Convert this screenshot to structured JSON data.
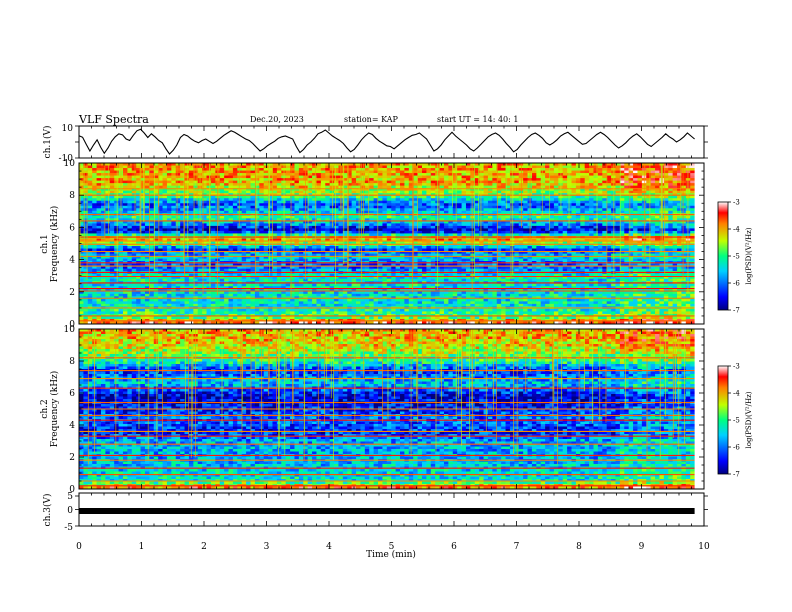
{
  "header": {
    "title": "VLF Spectra",
    "date": "Dec.20, 2023",
    "station": "station= KAP",
    "start": "start  UT  =   14: 40: 1"
  },
  "chart_data": [
    {
      "type": "line",
      "name": "waveform-ch1",
      "ylabel": "ch.1(V)",
      "ylim": [
        -10,
        10
      ],
      "y_tick_labels": [
        "10",
        "-10"
      ],
      "xlim": [
        0,
        10
      ],
      "values": [
        4.2,
        3.1,
        -1.5,
        -6.0,
        -2.0,
        1.5,
        -3.5,
        -7.5,
        -4.0,
        0.5,
        3.5,
        5.5,
        4.8,
        2.0,
        1.0,
        4.5,
        7.5,
        8.5,
        6.0,
        3.0,
        5.5,
        3.5,
        1.0,
        -0.5,
        -4.5,
        -8.0,
        -5.5,
        -2.0,
        3.0,
        5.0,
        4.0,
        2.0,
        0.5,
        -0.5,
        1.0,
        2.0,
        0.5,
        -1.0,
        0.5,
        2.5,
        4.5,
        6.0,
        7.5,
        6.5,
        5.0,
        3.5,
        2.0,
        1.0,
        -1.0,
        -3.5,
        -6.0,
        -4.5,
        -2.5,
        -1.0,
        0.5,
        2.5,
        3.5,
        4.0,
        3.0,
        2.0,
        -3.0,
        -7.0,
        -5.0,
        -2.0,
        0.0,
        2.5,
        5.5,
        6.5,
        8.0,
        6.0,
        4.0,
        2.5,
        1.0,
        -1.0,
        -4.0,
        -6.5,
        -5.0,
        -2.0,
        1.5,
        4.0,
        6.0,
        5.0,
        2.5,
        0.5,
        -1.0,
        -2.5,
        -3.0,
        -4.5,
        -2.5,
        -0.5,
        1.5,
        3.0,
        4.5,
        5.0,
        6.0,
        4.0,
        2.0,
        -2.0,
        -6.0,
        -4.5,
        -2.0,
        1.5,
        4.0,
        6.5,
        4.0,
        2.0,
        0.0,
        -2.0,
        -4.5,
        -6.0,
        -4.0,
        -1.5,
        1.0,
        3.5,
        5.0,
        6.0,
        4.5,
        2.0,
        -1.0,
        -3.5,
        -6.5,
        -5.0,
        -2.0,
        0.5,
        3.0,
        5.0,
        6.0,
        4.5,
        2.5,
        -0.5,
        -2.0,
        -0.5,
        1.5,
        4.0,
        5.5,
        6.5,
        4.5,
        2.5,
        0.5,
        -1.5,
        -1.0,
        1.0,
        3.0,
        5.0,
        6.5,
        5.0,
        3.0,
        0.5,
        -2.0,
        -4.0,
        -2.5,
        -0.5,
        2.0,
        4.0,
        5.5,
        3.5,
        1.0,
        -1.5,
        -3.0,
        -1.0,
        1.0,
        3.0,
        5.5,
        3.5,
        2.0,
        0.0,
        1.5,
        3.5,
        6.0,
        4.0,
        2.0
      ],
      "x_ticks": [
        0,
        1,
        2,
        3,
        4,
        5,
        6,
        7,
        8,
        9,
        10
      ]
    },
    {
      "type": "heatmap",
      "name": "spectrogram-ch1",
      "ylabel_line1": "ch.1",
      "ylabel_line2": "Frequency (kHz)",
      "ylim": [
        0,
        10
      ],
      "y_ticks": [
        0,
        2,
        4,
        6,
        8,
        10
      ],
      "xlim": [
        0,
        9.85
      ],
      "colorbar_label": "log(PSD)(V²/Hz)",
      "colorbar_range": [
        -7,
        -3
      ],
      "colorbar_ticks": [
        -3,
        -4,
        -5,
        -6,
        -7
      ],
      "band_lines_khz": [
        0.2,
        0.5,
        1.0,
        1.6,
        2.05,
        2.2,
        2.55,
        2.95,
        3.2,
        3.6,
        3.8,
        4.2,
        4.5,
        4.95,
        5.15,
        5.4,
        6.4,
        6.8,
        8.0,
        8.4
      ],
      "level_profile": [
        [
          0,
          -3.2
        ],
        [
          0.4,
          -4.8
        ],
        [
          1.0,
          -5.3
        ],
        [
          2.0,
          -5.4
        ],
        [
          3.0,
          -5.3
        ],
        [
          3.6,
          -6.2
        ],
        [
          4.2,
          -5.5
        ],
        [
          4.6,
          -6.3
        ],
        [
          5.3,
          -3.8
        ],
        [
          5.8,
          -6.8
        ],
        [
          6.6,
          -5.0
        ],
        [
          7.4,
          -6.2
        ],
        [
          8.0,
          -4.8
        ],
        [
          8.8,
          -4.0
        ],
        [
          10,
          -4.0
        ]
      ],
      "change_time_min": 8.65
    },
    {
      "type": "heatmap",
      "name": "spectrogram-ch2",
      "ylabel_line1": "ch.2",
      "ylabel_line2": "Frequency (kHz)",
      "ylim": [
        0,
        10
      ],
      "y_ticks": [
        0,
        2,
        4,
        6,
        8,
        10
      ],
      "xlim": [
        0,
        9.85
      ],
      "colorbar_label": "log(PSD)(V²/Hz)",
      "colorbar_range": [
        -7,
        -3
      ],
      "colorbar_ticks": [
        -3,
        -4,
        -5,
        -6,
        -7
      ],
      "band_lines_khz": [
        0.2,
        0.5,
        0.9,
        1.3,
        1.8,
        2.1,
        2.8,
        3.3,
        3.6,
        4.3,
        4.6,
        5.0,
        5.4,
        6.3,
        6.9,
        7.4,
        8.2
      ],
      "level_profile": [
        [
          0,
          -3.5
        ],
        [
          0.5,
          -5.3
        ],
        [
          1.2,
          -5.5
        ],
        [
          2.0,
          -5.7
        ],
        [
          3.0,
          -5.7
        ],
        [
          3.5,
          -6.4
        ],
        [
          4.4,
          -6.0
        ],
        [
          5.2,
          -6.5
        ],
        [
          5.8,
          -6.7
        ],
        [
          6.6,
          -5.5
        ],
        [
          7.4,
          -6.4
        ],
        [
          8.0,
          -5.0
        ],
        [
          9.0,
          -4.2
        ],
        [
          10,
          -4.0
        ]
      ],
      "change_time_min": 8.65
    },
    {
      "type": "line",
      "name": "waveform-ch3",
      "ylabel": "ch.3(V)",
      "ylim": [
        -5,
        5
      ],
      "y_tick_labels": [
        "5",
        "0",
        "-5"
      ],
      "value": 0,
      "xlim": [
        0,
        9.85
      ],
      "xlabel": "Time (min)",
      "x_ticks": [
        0,
        1,
        2,
        3,
        4,
        5,
        6,
        7,
        8,
        9,
        10
      ],
      "x_tick_labels": [
        "0",
        "1",
        "2",
        "3",
        "4",
        "5",
        "6",
        "7",
        "8",
        "9",
        "10"
      ]
    }
  ],
  "colors": {
    "text": "#000000",
    "axis": "#000000",
    "background": "#ffffff"
  }
}
